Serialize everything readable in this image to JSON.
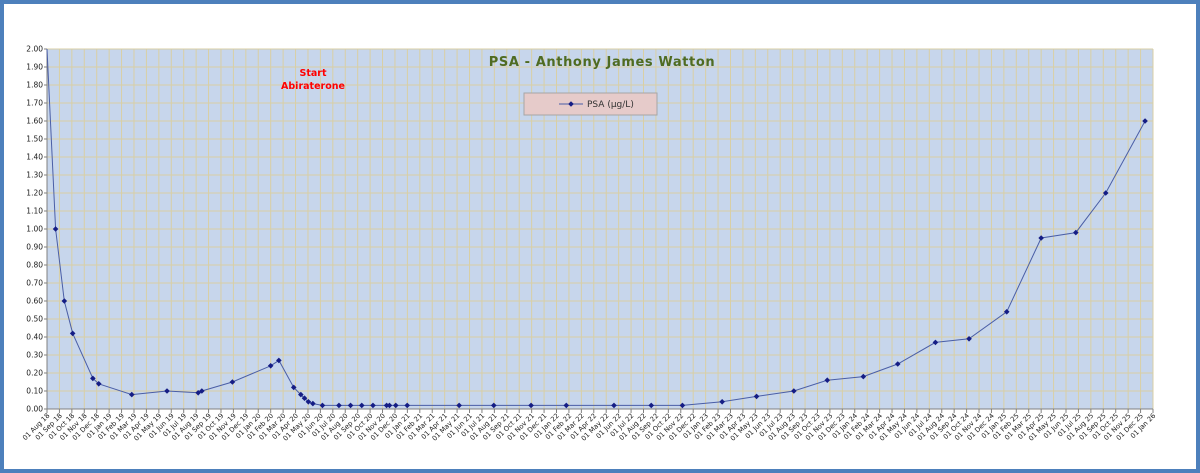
{
  "window": {
    "border_color": "#4d80bc",
    "background": "#ffffff"
  },
  "colors": {
    "plot_background": "#c7d6ec",
    "gridline": "#d9cfa4",
    "axis": "#808080",
    "series_line": "#4a5ea6",
    "series_marker": "#151d85",
    "title": "#4f6b21",
    "annotation": "#ff0000",
    "legend_fill": "#e6cbca",
    "legend_border": "#a6a6a6",
    "tick_label": "#1a1a1a"
  },
  "chart_data": {
    "type": "line",
    "title": "PSA - Anthony James Watton",
    "legend_label": "PSA (µg/L)",
    "legend_position": "top-center-inside",
    "annotation": {
      "line1": "Start",
      "line2": "Abiraterone"
    },
    "xlabel": "",
    "ylabel": "",
    "ylim": [
      0.0,
      2.0
    ],
    "y_tick_step": 0.1,
    "grid": true,
    "y_ticks": [
      "0.00",
      "0.10",
      "0.20",
      "0.30",
      "0.40",
      "0.50",
      "0.60",
      "0.70",
      "0.80",
      "0.90",
      "1.00",
      "1.10",
      "1.20",
      "1.30",
      "1.40",
      "1.50",
      "1.60",
      "1.70",
      "1.80",
      "1.90",
      "2.00"
    ],
    "x_ticks": [
      "01 Aug 18",
      "01 Sep 18",
      "01 Oct 18",
      "01 Nov 18",
      "01 Dec 18",
      "01 Jan 19",
      "01 Feb 19",
      "01 Mar 19",
      "01 Apr 19",
      "01 May 19",
      "01 Jun 19",
      "01 Jul 19",
      "01 Aug 19",
      "01 Sep 19",
      "01 Oct 19",
      "01 Nov 19",
      "01 Dec 19",
      "01 Jan 20",
      "01 Feb 20",
      "01 Mar 20",
      "01 Apr 20",
      "01 May 20",
      "01 Jun 20",
      "01 Jul 20",
      "01 Aug 20",
      "01 Sep 20",
      "01 Oct 20",
      "01 Nov 20",
      "01 Dec 20",
      "01 Jan 21",
      "01 Feb 21",
      "01 Mar 21",
      "01 Apr 21",
      "01 May 21",
      "01 Jun 21",
      "01 Jul 21",
      "01 Aug 21",
      "01 Sep 21",
      "01 Oct 21",
      "01 Nov 21",
      "01 Dec 21",
      "01 Jan 22",
      "01 Feb 22",
      "01 Mar 22",
      "01 Apr 22",
      "01 May 22",
      "01 Jun 22",
      "01 Jul 22",
      "01 Aug 22",
      "01 Sep 22",
      "01 Oct 22",
      "01 Nov 22",
      "01 Dec 22",
      "01 Jan 23",
      "01 Feb 23",
      "01 Mar 23",
      "01 Apr 23",
      "01 May 23",
      "01 Jun 23",
      "01 Jul 23",
      "01 Aug 23",
      "01 Sep 23",
      "01 Oct 23",
      "01 Nov 23",
      "01 Dec 23",
      "01 Jan 24",
      "01 Feb 24",
      "01 Mar 24",
      "01 Apr 24",
      "01 May 24",
      "01 Jun 24",
      "01 Jul 24",
      "01 Aug 24",
      "01 Sep 24",
      "01 Oct 24",
      "01 Nov 24",
      "01 Dec 24",
      "01 Jan 25",
      "01 Feb 25",
      "01 Mar 25",
      "01 Apr 25",
      "01 May 25",
      "01 Jun 25",
      "01 Jul 25",
      "01 Aug 25",
      "01 Sep 25",
      "01 Oct 25",
      "01 Nov 25",
      "01 Dec 25",
      "01 Jan 26"
    ],
    "series": [
      {
        "name": "PSA (µg/L)",
        "first_point_off_scale": true,
        "points": [
          [
            "01 Aug 18",
            2.0,
            false
          ],
          [
            "22 Aug 18",
            1.0
          ],
          [
            "13 Sep 18",
            0.6
          ],
          [
            "03 Oct 18",
            0.42
          ],
          [
            "22 Nov 18",
            0.17
          ],
          [
            "06 Dec 18",
            0.14
          ],
          [
            "26 Feb 19",
            0.08
          ],
          [
            "21 May 19",
            0.1
          ],
          [
            "06 Aug 19",
            0.09
          ],
          [
            "15 Aug 19",
            0.1
          ],
          [
            "29 Oct 19",
            0.15
          ],
          [
            "01 Feb 20",
            0.24
          ],
          [
            "21 Feb 20",
            0.27
          ],
          [
            "27 Mar 20",
            0.12
          ],
          [
            "14 Apr 20",
            0.08
          ],
          [
            "23 Apr 20",
            0.06
          ],
          [
            "02 May 20",
            0.04
          ],
          [
            "13 May 20",
            0.03
          ],
          [
            "06 Jun 20",
            0.02
          ],
          [
            "16 Jul 20",
            0.02
          ],
          [
            "14 Aug 20",
            0.02
          ],
          [
            "11 Sep 20",
            0.02
          ],
          [
            "08 Oct 20",
            0.02
          ],
          [
            "11 Nov 20",
            0.02
          ],
          [
            "18 Nov 20",
            0.02
          ],
          [
            "03 Dec 20",
            0.02
          ],
          [
            "31 Dec 20",
            0.02
          ],
          [
            "06 May 21",
            0.02
          ],
          [
            "30 Jul 21",
            0.02
          ],
          [
            "30 Oct 21",
            0.02
          ],
          [
            "25 Jan 22",
            0.02
          ],
          [
            "20 May 22",
            0.02
          ],
          [
            "20 Aug 22",
            0.02
          ],
          [
            "05 Nov 22",
            0.02
          ],
          [
            "11 Feb 23",
            0.04
          ],
          [
            "04 May 23",
            0.07
          ],
          [
            "04 Aug 23",
            0.1
          ],
          [
            "25 Oct 23",
            0.16
          ],
          [
            "22 Jan 24",
            0.18
          ],
          [
            "15 Apr 24",
            0.25
          ],
          [
            "16 Jul 24",
            0.37
          ],
          [
            "07 Oct 24",
            0.39
          ],
          [
            "08 Jan 25",
            0.54
          ],
          [
            "01 Apr 25",
            0.95
          ],
          [
            "25 Jun 25",
            0.98
          ],
          [
            "07 Sep 25",
            1.2
          ],
          [
            "12 Dec 25",
            1.6
          ]
        ]
      }
    ]
  }
}
